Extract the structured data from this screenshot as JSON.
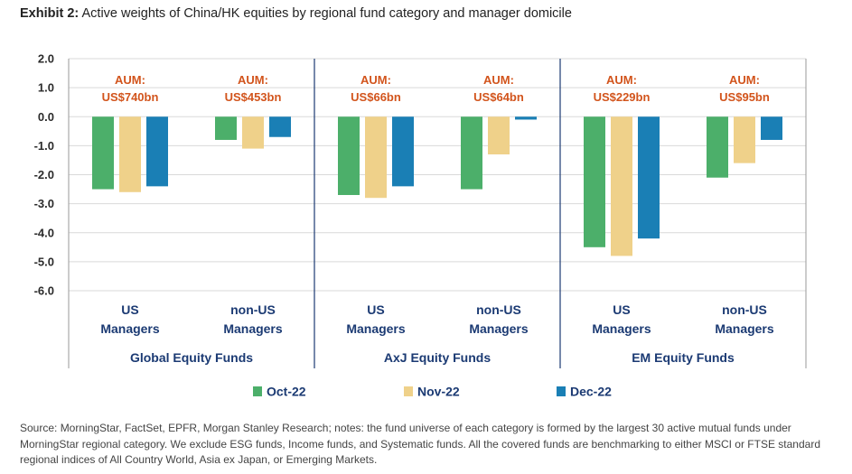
{
  "title_prefix": "Exhibit 2:",
  "title_text": "Active weights of China/HK equities by regional fund category and manager domicile",
  "footnote": "Source: MorningStar, FactSet, EPFR, Morgan Stanley Research; notes: the fund universe of each category is formed by the largest 30 active mutual funds under MorningStar regional category. We exclude ESG funds, Income funds, and Systematic funds. All the covered funds are benchmarking to either MSCI or FTSE standard regional indices of All Country World, Asia ex Japan, or Emerging Markets.",
  "chart_data": {
    "type": "bar",
    "title": "Active weights of China/HK equities by regional fund category and manager domicile",
    "ylim": [
      -6.0,
      2.0
    ],
    "yticks": [
      "2.0",
      "1.0",
      "0.0",
      "-1.0",
      "-2.0",
      "-3.0",
      "-4.0",
      "-5.0",
      "-6.0"
    ],
    "ytick_values": [
      2,
      1,
      0,
      -1,
      -2,
      -3,
      -4,
      -5,
      -6
    ],
    "grid": true,
    "legend_position": "bottom",
    "series": [
      {
        "name": "Oct-22",
        "color": "#4caf6a"
      },
      {
        "name": "Nov-22",
        "color": "#efd18a"
      },
      {
        "name": "Dec-22",
        "color": "#1a7fb5"
      }
    ],
    "groups": [
      {
        "label": "Global Equity Funds",
        "subgroups": [
          {
            "label": [
              "US",
              "Managers"
            ],
            "aum": [
              "AUM:",
              "US$740bn"
            ],
            "values": [
              -2.5,
              -2.6,
              -2.4
            ]
          },
          {
            "label": [
              "non-US",
              "Managers"
            ],
            "aum": [
              "AUM:",
              "US$453bn"
            ],
            "values": [
              -0.8,
              -1.1,
              -0.7
            ]
          }
        ]
      },
      {
        "label": "AxJ Equity Funds",
        "subgroups": [
          {
            "label": [
              "US",
              "Managers"
            ],
            "aum": [
              "AUM:",
              "US$66bn"
            ],
            "values": [
              -2.7,
              -2.8,
              -2.4
            ]
          },
          {
            "label": [
              "non-US",
              "Managers"
            ],
            "aum": [
              "AUM:",
              "US$64bn"
            ],
            "values": [
              -2.5,
              -1.3,
              -0.1
            ]
          }
        ]
      },
      {
        "label": "EM Equity Funds",
        "subgroups": [
          {
            "label": [
              "US",
              "Managers"
            ],
            "aum": [
              "AUM:",
              "US$229bn"
            ],
            "values": [
              -4.5,
              -4.8,
              -4.2
            ]
          },
          {
            "label": [
              "non-US",
              "Managers"
            ],
            "aum": [
              "AUM:",
              "US$95bn"
            ],
            "values": [
              -2.1,
              -1.6,
              -0.8
            ]
          }
        ]
      }
    ]
  }
}
